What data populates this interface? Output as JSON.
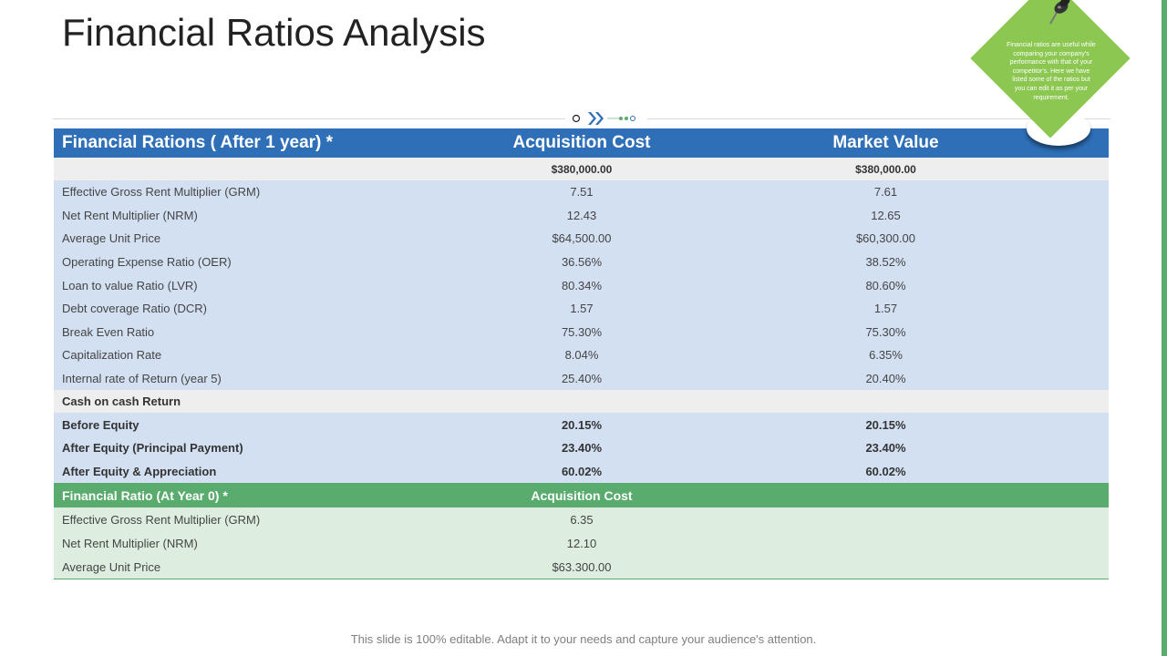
{
  "title": "Financial Ratios Analysis",
  "note": "Financial ratios are useful while comparing your company's performance with that of your competitor's. Here we have listed some of the ratios but you can edit it as per your requirement.",
  "table": {
    "header": [
      "Financial Rations ( After 1 year) *",
      "Acquisition Cost",
      "Market Value"
    ],
    "price_row": [
      "",
      "$380,000.00",
      "$380,000.00"
    ],
    "rows": [
      [
        "Effective Gross Rent Multiplier (GRM)",
        "7.51",
        "7.61"
      ],
      [
        "Net Rent Multiplier (NRM)",
        "12.43",
        "12.65"
      ],
      [
        "Average Unit Price",
        "$64,500.00",
        "$60,300.00"
      ],
      [
        "Operating Expense Ratio (OER)",
        "36.56%",
        "38.52%"
      ],
      [
        "Loan to value Ratio (LVR)",
        "80.34%",
        "80.60%"
      ],
      [
        "Debt coverage Ratio (DCR)",
        "1.57",
        "1.57"
      ],
      [
        "Break Even Ratio",
        "75.30%",
        "75.30%"
      ],
      [
        "Capitalization Rate",
        "8.04%",
        "6.35%"
      ],
      [
        "Internal rate of Return (year 5)",
        "25.40%",
        "20.40%"
      ]
    ],
    "cash_section": "Cash on cash Return",
    "cash_rows": [
      [
        "Before Equity",
        "20.15%",
        "20.15%"
      ],
      [
        "After Equity (Principal Payment)",
        "23.40%",
        "23.40%"
      ],
      [
        "After Equity & Appreciation",
        "60.02%",
        "60.02%"
      ]
    ],
    "year0_header": [
      "Financial Ratio (At Year 0) *",
      "Acquisition  Cost"
    ],
    "year0_rows": [
      [
        "Effective Gross Rent Multiplier (GRM)",
        "6.35"
      ],
      [
        "Net Rent Multiplier (NRM)",
        "12.10"
      ],
      [
        "Average Unit Price",
        "$63.300.00"
      ]
    ]
  },
  "footer": "This slide is 100% editable. Adapt it to your needs and capture your audience's attention.",
  "colors": {
    "header_blue": "#2e6fb7",
    "row_blue": "#d3e0f2",
    "header_green": "#5aab6e",
    "row_green": "#ddeee1",
    "note_green": "#8cc751"
  }
}
